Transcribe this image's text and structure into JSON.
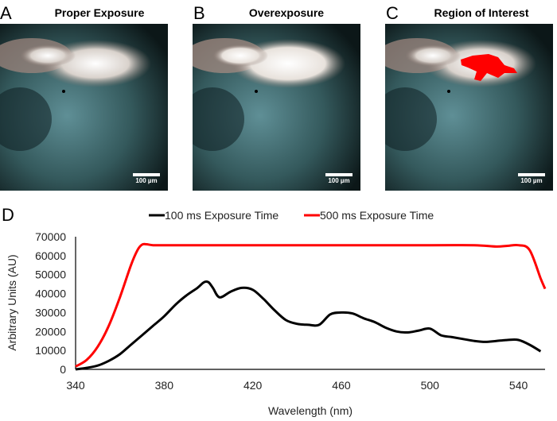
{
  "panels": [
    {
      "letter": "A",
      "title": "Proper Exposure",
      "scale_label": "100 µm"
    },
    {
      "letter": "B",
      "title": "Overexposure",
      "scale_label": "100 µm"
    },
    {
      "letter": "C",
      "title": "Region of Interest",
      "scale_label": "100 µm"
    }
  ],
  "chart_panel_letter": "D",
  "colors": {
    "series_100ms": "#000000",
    "series_500ms": "#ff0000",
    "roi": "#ff0000"
  },
  "chart_data": {
    "type": "line",
    "title": "",
    "xlabel": "Wavelength (nm)",
    "ylabel": "Arbitrary Units (AU)",
    "xlim": [
      340,
      552
    ],
    "ylim": [
      0,
      70000
    ],
    "xticks": [
      340,
      380,
      420,
      460,
      500,
      540
    ],
    "yticks": [
      0,
      10000,
      20000,
      30000,
      40000,
      50000,
      60000,
      70000
    ],
    "legend_position": "top",
    "series": [
      {
        "name": "100 ms Exposure Time",
        "color": "#000000",
        "x": [
          340,
          345,
          350,
          355,
          360,
          365,
          370,
          375,
          380,
          385,
          390,
          395,
          398,
          400,
          402,
          405,
          410,
          415,
          420,
          425,
          430,
          435,
          440,
          445,
          450,
          455,
          460,
          465,
          470,
          475,
          480,
          485,
          490,
          495,
          500,
          505,
          510,
          515,
          520,
          525,
          530,
          535,
          540,
          545,
          550
        ],
        "values": [
          0,
          800,
          2000,
          4500,
          8000,
          13000,
          18000,
          23000,
          28000,
          34000,
          39000,
          43000,
          46000,
          46000,
          43000,
          38000,
          41000,
          43000,
          42000,
          37000,
          31000,
          26000,
          24000,
          23500,
          23500,
          29000,
          30000,
          29500,
          27000,
          25000,
          22000,
          20000,
          19500,
          20500,
          21500,
          18000,
          17000,
          16000,
          15000,
          14500,
          15000,
          15500,
          15500,
          13000,
          9500
        ]
      },
      {
        "name": "500 ms Exposure Time",
        "color": "#ff0000",
        "x": [
          340,
          345,
          350,
          355,
          360,
          365,
          368,
          370,
          372,
          375,
          380,
          400,
          450,
          500,
          520,
          530,
          535,
          540,
          545,
          550,
          552
        ],
        "values": [
          1500,
          5000,
          12000,
          23000,
          38000,
          55000,
          63000,
          65800,
          66000,
          65500,
          65500,
          65500,
          65500,
          65500,
          65500,
          64800,
          65200,
          65500,
          63000,
          48000,
          42500
        ]
      }
    ]
  }
}
